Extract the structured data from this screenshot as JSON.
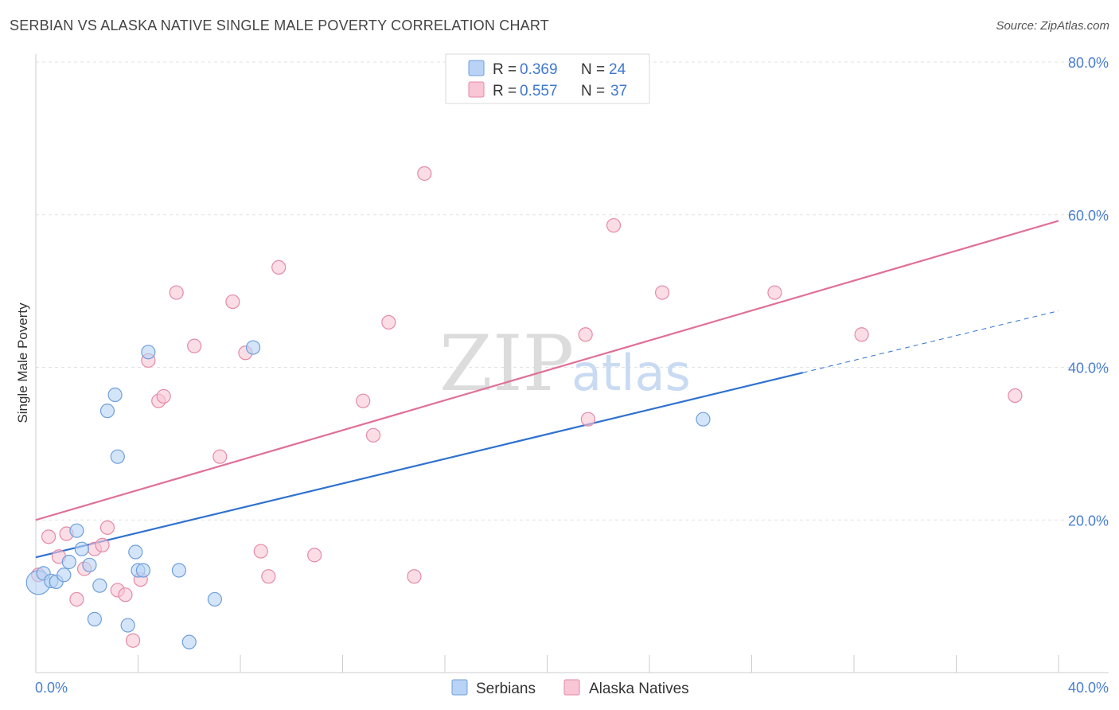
{
  "title": "SERBIAN VS ALASKA NATIVE SINGLE MALE POVERTY CORRELATION CHART",
  "source": "Source: ZipAtlas.com",
  "watermark": {
    "zip": "ZIP",
    "atlas": "atlas"
  },
  "colors": {
    "serbians_fill": "#b8d3f5",
    "serbians_stroke": "#6f9fdc",
    "serbians_line": "#2f72cf",
    "alaska_fill": "#f8c6d5",
    "alaska_stroke": "#e58aa6",
    "alaska_line": "#e07098",
    "tick": "#4a7fd0",
    "grid": "#e2e2e2"
  },
  "legend": {
    "rows": [
      {
        "r_label": "R = ",
        "r_value": "0.369",
        "n_label": "N = ",
        "n_value": "24"
      },
      {
        "r_label": "R = ",
        "r_value": "0.557",
        "n_label": "N = ",
        "n_value": "37"
      }
    ]
  },
  "chart_data": {
    "type": "scatter",
    "title": "SERBIAN VS ALASKA NATIVE SINGLE MALE POVERTY CORRELATION CHART",
    "xlabel": "",
    "ylabel": "Single Male Poverty",
    "xlim": [
      0,
      40
    ],
    "ylim": [
      0,
      80
    ],
    "x_tick_labels": [
      "0.0%",
      "40.0%"
    ],
    "y_ticks": [
      20,
      40,
      60,
      80
    ],
    "y_tick_labels": [
      "20.0%",
      "40.0%",
      "60.0%",
      "80.0%"
    ],
    "grid": true,
    "series": [
      {
        "name": "Serbians",
        "r": 0.369,
        "n": 24,
        "points": [
          [
            0.1,
            11.8
          ],
          [
            0.3,
            13.0
          ],
          [
            0.6,
            12.0
          ],
          [
            0.8,
            11.9
          ],
          [
            1.1,
            12.8
          ],
          [
            1.3,
            14.5
          ],
          [
            1.6,
            18.6
          ],
          [
            1.8,
            16.2
          ],
          [
            2.1,
            14.1
          ],
          [
            2.3,
            7.0
          ],
          [
            2.5,
            11.4
          ],
          [
            2.8,
            34.3
          ],
          [
            3.1,
            36.4
          ],
          [
            3.2,
            28.3
          ],
          [
            3.6,
            6.2
          ],
          [
            3.9,
            15.8
          ],
          [
            4.0,
            13.4
          ],
          [
            4.2,
            13.4
          ],
          [
            4.4,
            42.0
          ],
          [
            5.6,
            13.4
          ],
          [
            6.0,
            4.0
          ],
          [
            7.0,
            9.6
          ],
          [
            8.5,
            42.6
          ],
          [
            26.1,
            33.2
          ]
        ],
        "trend": {
          "x0": 0,
          "y0": 15.1,
          "x1": 30.0,
          "y1": 39.3,
          "dash_x1": 40,
          "dash_y1": 47.4
        }
      },
      {
        "name": "Alaska Natives",
        "r": 0.557,
        "n": 37,
        "points": [
          [
            0.1,
            12.8
          ],
          [
            0.5,
            17.8
          ],
          [
            0.9,
            15.2
          ],
          [
            1.2,
            18.2
          ],
          [
            1.6,
            9.6
          ],
          [
            1.9,
            13.6
          ],
          [
            2.3,
            16.2
          ],
          [
            2.6,
            16.7
          ],
          [
            2.8,
            19.0
          ],
          [
            3.2,
            10.8
          ],
          [
            3.5,
            10.2
          ],
          [
            3.8,
            4.2
          ],
          [
            4.1,
            12.2
          ],
          [
            4.4,
            40.9
          ],
          [
            4.8,
            35.6
          ],
          [
            5.0,
            36.2
          ],
          [
            5.5,
            49.8
          ],
          [
            6.2,
            42.8
          ],
          [
            7.2,
            28.3
          ],
          [
            7.7,
            48.6
          ],
          [
            8.2,
            41.9
          ],
          [
            8.8,
            15.9
          ],
          [
            9.1,
            12.6
          ],
          [
            9.5,
            53.1
          ],
          [
            10.9,
            15.4
          ],
          [
            12.8,
            35.6
          ],
          [
            13.2,
            31.1
          ],
          [
            13.8,
            45.9
          ],
          [
            14.8,
            12.6
          ],
          [
            15.2,
            65.4
          ],
          [
            21.5,
            44.3
          ],
          [
            21.6,
            33.2
          ],
          [
            22.6,
            58.6
          ],
          [
            24.5,
            49.8
          ],
          [
            28.9,
            49.8
          ],
          [
            32.3,
            44.3
          ],
          [
            38.3,
            36.3
          ]
        ],
        "trend": {
          "x0": 0,
          "y0": 20.0,
          "x1": 40,
          "y1": 59.2
        }
      }
    ]
  },
  "bottom_legend": [
    "Serbians",
    "Alaska Natives"
  ]
}
